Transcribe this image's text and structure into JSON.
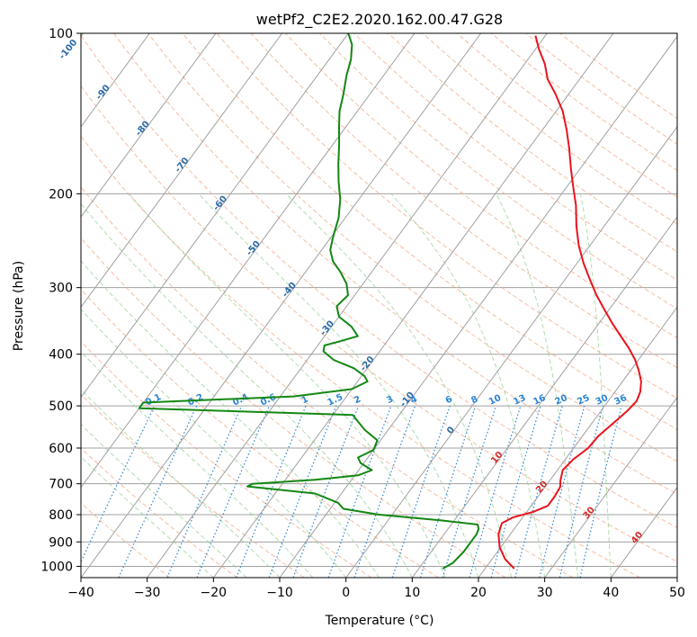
{
  "chart_data": {
    "type": "line",
    "title": "wetPf2_C2E2.2020.162.00.47.G28",
    "xlabel": "Temperature (°C)",
    "ylabel": "Pressure (hPa)",
    "xlim": [
      -40,
      50
    ],
    "ylim": [
      1050,
      100
    ],
    "y_scale": "log",
    "x_ticks": [
      -40,
      -30,
      -20,
      -10,
      0,
      10,
      20,
      30,
      40,
      50
    ],
    "y_ticks": [
      100,
      200,
      300,
      400,
      500,
      600,
      700,
      800,
      900,
      1000
    ],
    "grid": true,
    "skew": true,
    "series": [
      {
        "color": "#e8141c",
        "points": [
          [
            24.4,
            1010
          ],
          [
            22.0,
            970
          ],
          [
            19.8,
            920
          ],
          [
            18.2,
            870
          ],
          [
            17.5,
            830
          ],
          [
            18.5,
            810
          ],
          [
            21.0,
            790
          ],
          [
            22.5,
            770
          ],
          [
            22.5,
            740
          ],
          [
            22.3,
            710
          ],
          [
            21.6,
            690
          ],
          [
            20.8,
            660
          ],
          [
            21.2,
            630
          ],
          [
            22.2,
            600
          ],
          [
            22.4,
            570
          ],
          [
            23.2,
            540
          ],
          [
            24.0,
            510
          ],
          [
            24.3,
            490
          ],
          [
            23.8,
            470
          ],
          [
            22.8,
            450
          ],
          [
            21.3,
            430
          ],
          [
            19.5,
            410
          ],
          [
            17.3,
            390
          ],
          [
            14.7,
            370
          ],
          [
            12.0,
            350
          ],
          [
            9.3,
            330
          ],
          [
            6.5,
            310
          ],
          [
            3.8,
            290
          ],
          [
            1.0,
            270
          ],
          [
            -1.7,
            250
          ],
          [
            -4.2,
            230
          ],
          [
            -6.6,
            210
          ],
          [
            -8.9,
            195
          ],
          [
            -11.3,
            180
          ],
          [
            -13.8,
            165
          ],
          [
            -16.3,
            152
          ],
          [
            -19.0,
            140
          ],
          [
            -22.0,
            130
          ],
          [
            -24.8,
            122
          ],
          [
            -27.0,
            114
          ],
          [
            -29.5,
            107
          ],
          [
            -31.5,
            101
          ]
        ]
      },
      {
        "color": "#138713",
        "points": [
          [
            13.6,
            1010
          ],
          [
            14.5,
            985
          ],
          [
            14.9,
            940
          ],
          [
            14.9,
            900
          ],
          [
            14.9,
            870
          ],
          [
            14.6,
            850
          ],
          [
            14.0,
            835
          ],
          [
            8.0,
            820
          ],
          [
            -2.0,
            800
          ],
          [
            -8.0,
            780
          ],
          [
            -9.5,
            760
          ],
          [
            -14.0,
            730
          ],
          [
            -25.0,
            708
          ],
          [
            -24.5,
            700
          ],
          [
            -15.5,
            688
          ],
          [
            -9.5,
            675
          ],
          [
            -8.0,
            660
          ],
          [
            -10.5,
            640
          ],
          [
            -11.5,
            625
          ],
          [
            -10.0,
            605
          ],
          [
            -10.5,
            580
          ],
          [
            -13.5,
            555
          ],
          [
            -15.5,
            535
          ],
          [
            -17.0,
            520
          ],
          [
            -50.0,
            505
          ],
          [
            -50.0,
            493
          ],
          [
            -28.0,
            480
          ],
          [
            -20.0,
            465
          ],
          [
            -18.5,
            450
          ],
          [
            -19.5,
            440
          ],
          [
            -22.0,
            425
          ],
          [
            -26.0,
            410
          ],
          [
            -28.5,
            395
          ],
          [
            -29.0,
            385
          ],
          [
            -27.0,
            378
          ],
          [
            -25.0,
            370
          ],
          [
            -27.0,
            355
          ],
          [
            -30.0,
            340
          ],
          [
            -31.5,
            325
          ],
          [
            -31.0,
            310
          ],
          [
            -32.5,
            295
          ],
          [
            -34.8,
            280
          ],
          [
            -37.0,
            268
          ],
          [
            -38.7,
            255
          ],
          [
            -39.8,
            240
          ],
          [
            -41.0,
            222
          ],
          [
            -42.8,
            205
          ],
          [
            -45.0,
            190
          ],
          [
            -47.0,
            176
          ],
          [
            -49.0,
            162
          ],
          [
            -51.0,
            150
          ],
          [
            -52.7,
            140
          ],
          [
            -54.0,
            130
          ],
          [
            -55.6,
            120
          ],
          [
            -56.7,
            112
          ],
          [
            -58.2,
            105
          ],
          [
            -60.0,
            100
          ]
        ]
      }
    ],
    "isotherm_labels": [
      "-100",
      "-90",
      "-80",
      "-70",
      "-60",
      "-50",
      "-40",
      "-30",
      "-20",
      "-10",
      "0",
      "10",
      "20",
      "30",
      "40"
    ],
    "mixing_ratio_labels": [
      "0.1",
      "0.2",
      "0.4",
      "0.6",
      "1",
      "1.5",
      "2",
      "3",
      "4",
      "6",
      "8",
      "10",
      "13",
      "16",
      "20",
      "25",
      "30",
      "36"
    ],
    "colors": {
      "temperature": "#e8141c",
      "dewpoint": "#138713",
      "isotherm_label_cold": "#2b6aa8",
      "isotherm_label_warm": "#d42b2b",
      "dry_adiabat": "#f4a582",
      "moist_adiabat": "#8fcf8f",
      "mixing_ratio": "#2a85d6",
      "grid": "#a0a0a0"
    }
  }
}
